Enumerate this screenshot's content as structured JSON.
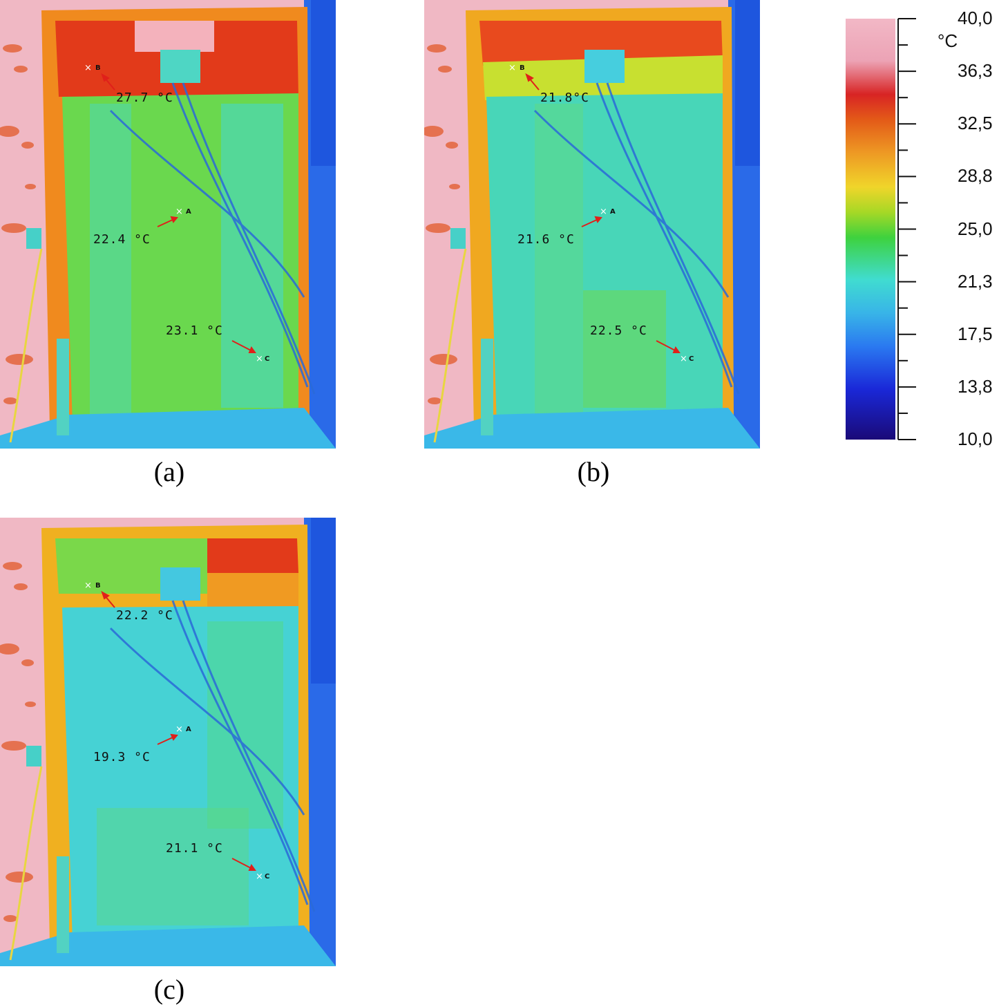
{
  "figure": {
    "panels": [
      {
        "caption": "(a)",
        "points": {
          "A": "A",
          "B": "B",
          "C": "C"
        },
        "readings": {
          "B": "27.7 °C",
          "A": "22.4 °C",
          "C": "23.1 °C"
        }
      },
      {
        "caption": "(b)",
        "points": {
          "A": "A",
          "B": "B",
          "C": "C"
        },
        "readings": {
          "B": "21.8°C",
          "A": "21.6 °C",
          "C": "22.5 °C"
        }
      },
      {
        "caption": "(c)",
        "points": {
          "A": "A",
          "B": "B",
          "C": "C"
        },
        "readings": {
          "B": "22.2 °C",
          "A": "19.3 °C",
          "C": "21.1 °C"
        }
      }
    ],
    "colorbar": {
      "unit": "°C",
      "ticks": [
        "40,0",
        "36,3",
        "32,5",
        "28,8",
        "25,0",
        "21,3",
        "17,5",
        "13,8",
        "10,0"
      ],
      "colors": [
        "#f2b8c6",
        "#d82424",
        "#ee9a24",
        "#f0d52a",
        "#3ed23e",
        "#40dcd0",
        "#2a78f0",
        "#1a0a78"
      ]
    }
  }
}
